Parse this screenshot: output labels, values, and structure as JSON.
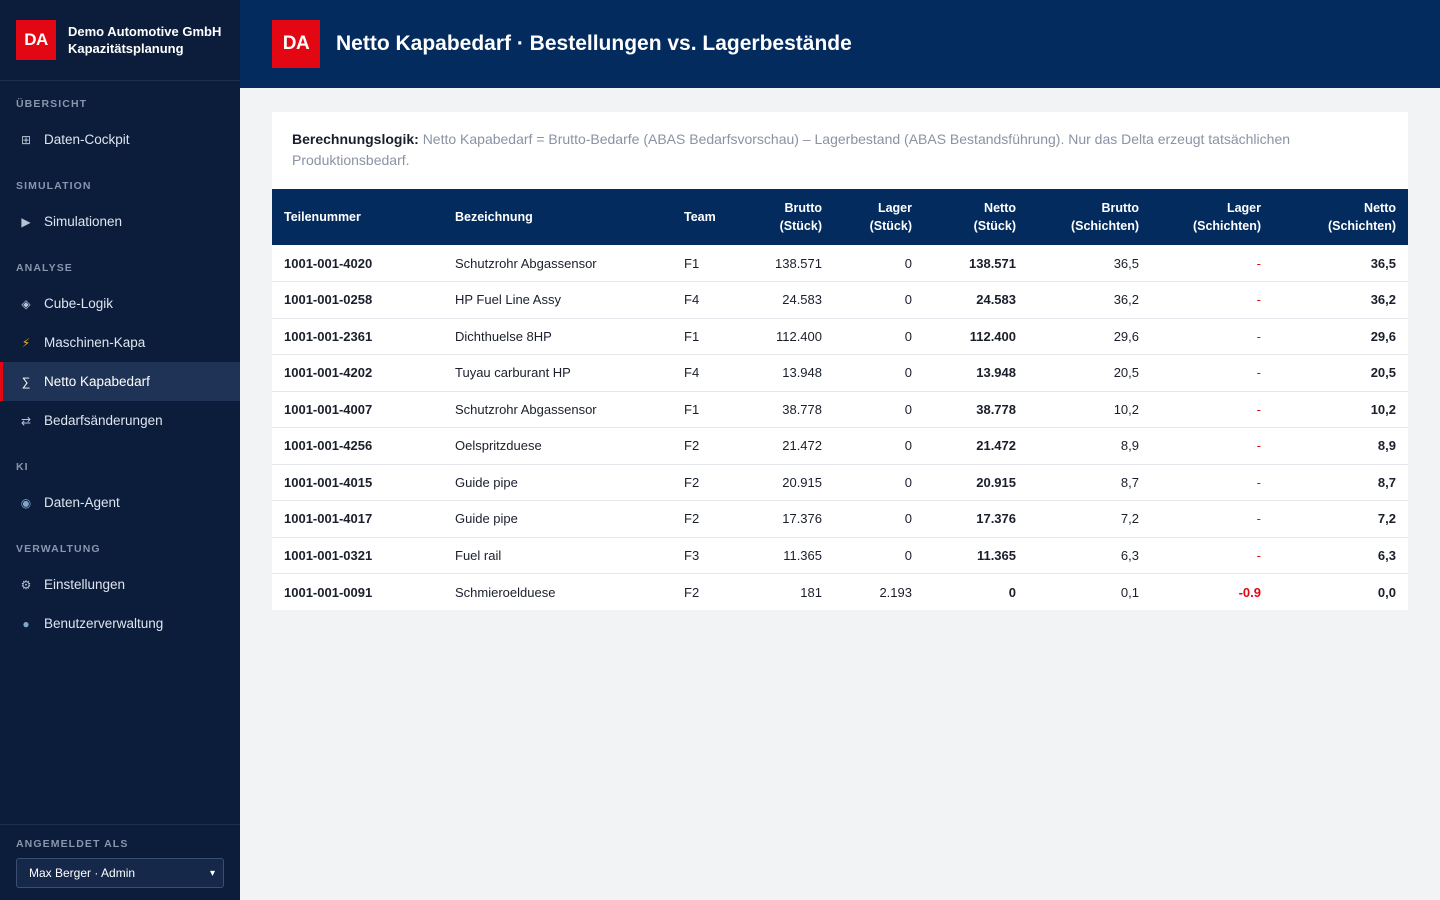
{
  "brand": {
    "logo": "DA",
    "company": "Demo Automotive GmbH",
    "product": "Kapazitätsplanung"
  },
  "nav": {
    "sections": [
      {
        "title": "ÜBERSICHT",
        "items": [
          {
            "label": "Daten-Cockpit",
            "icon": "grid-icon",
            "glyph": "⊞"
          }
        ]
      },
      {
        "title": "SIMULATION",
        "items": [
          {
            "label": "Simulationen",
            "icon": "play-icon",
            "glyph": "▶"
          }
        ]
      },
      {
        "title": "ANALYSE",
        "items": [
          {
            "label": "Cube-Logik",
            "icon": "cube-icon",
            "glyph": "◈"
          },
          {
            "label": "Maschinen-Kapa",
            "icon": "lightning-icon",
            "glyph": "⚡"
          },
          {
            "label": "Netto Kapabedarf",
            "icon": "sigma-icon",
            "glyph": "∑",
            "active": true
          },
          {
            "label": "Bedarfsänderungen",
            "icon": "swap-icon",
            "glyph": "⇄"
          }
        ]
      },
      {
        "title": "KI",
        "items": [
          {
            "label": "Daten-Agent",
            "icon": "robot-icon",
            "glyph": "◉"
          }
        ]
      },
      {
        "title": "VERWALTUNG",
        "items": [
          {
            "label": "Einstellungen",
            "icon": "gear-icon",
            "glyph": "⚙"
          },
          {
            "label": "Benutzerverwaltung",
            "icon": "user-icon",
            "glyph": "●"
          }
        ]
      }
    ]
  },
  "footer": {
    "label": "ANGEMELDET ALS",
    "user": "Max Berger · Admin"
  },
  "header": {
    "logo": "DA",
    "title": "Netto Kapabedarf · Bestellungen vs. Lagerbestände"
  },
  "logic": {
    "label": "Berechnungslogik:",
    "text": "Netto Kapabedarf = Brutto-Bedarfe (ABAS Bedarfsvorschau) – Lagerbestand (ABAS Bestandsführung). Nur das Delta erzeugt tatsächlichen Produktionsbedarf."
  },
  "table": {
    "headers": [
      {
        "l1": "Teilenummer",
        "l2": ""
      },
      {
        "l1": "Bezeichnung",
        "l2": ""
      },
      {
        "l1": "Team",
        "l2": ""
      },
      {
        "l1": "Brutto",
        "l2": "(Stück)"
      },
      {
        "l1": "Lager",
        "l2": "(Stück)"
      },
      {
        "l1": "Netto",
        "l2": "(Stück)"
      },
      {
        "l1": "Brutto",
        "l2": "(Schichten)"
      },
      {
        "l1": "Lager",
        "l2": "(Schichten)"
      },
      {
        "l1": "Netto",
        "l2": "(Schichten)"
      }
    ],
    "rows": [
      {
        "part": "1001-001-4020",
        "name": "Schutzrohr Abgassensor",
        "team": "F1",
        "brutto": "138.571",
        "lager": "0",
        "netto": "138.571",
        "brutto_s": "36,5",
        "lager_s": "-",
        "netto_s": "36,5"
      },
      {
        "part": "1001-001-0258",
        "name": "HP Fuel Line Assy",
        "team": "F4",
        "brutto": "24.583",
        "lager": "0",
        "netto": "24.583",
        "brutto_s": "36,2",
        "lager_s": "-",
        "netto_s": "36,2"
      },
      {
        "part": "1001-001-2361",
        "name": "Dichthuelse 8HP",
        "team": "F1",
        "brutto": "112.400",
        "lager": "0",
        "netto": "112.400",
        "brutto_s": "29,6",
        "lager_s": "-",
        "netto_s": "29,6"
      },
      {
        "part": "1001-001-4202",
        "name": "Tuyau carburant HP",
        "team": "F4",
        "brutto": "13.948",
        "lager": "0",
        "netto": "13.948",
        "brutto_s": "20,5",
        "lager_s": "-",
        "netto_s": "20,5"
      },
      {
        "part": "1001-001-4007",
        "name": "Schutzrohr Abgassensor",
        "team": "F1",
        "brutto": "38.778",
        "lager": "0",
        "netto": "38.778",
        "brutto_s": "10,2",
        "lager_s": "-",
        "netto_s": "10,2"
      },
      {
        "part": "1001-001-4256",
        "name": "Oelspritzduese",
        "team": "F2",
        "brutto": "21.472",
        "lager": "0",
        "netto": "21.472",
        "brutto_s": "8,9",
        "lager_s": "-",
        "netto_s": "8,9"
      },
      {
        "part": "1001-001-4015",
        "name": "Guide pipe",
        "team": "F2",
        "brutto": "20.915",
        "lager": "0",
        "netto": "20.915",
        "brutto_s": "8,7",
        "lager_s": "-",
        "netto_s": "8,7"
      },
      {
        "part": "1001-001-4017",
        "name": "Guide pipe",
        "team": "F2",
        "brutto": "17.376",
        "lager": "0",
        "netto": "17.376",
        "brutto_s": "7,2",
        "lager_s": "-",
        "netto_s": "7,2"
      },
      {
        "part": "1001-001-0321",
        "name": "Fuel rail",
        "team": "F3",
        "brutto": "11.365",
        "lager": "0",
        "netto": "11.365",
        "brutto_s": "6,3",
        "lager_s": "-",
        "netto_s": "6,3"
      },
      {
        "part": "1001-001-0091",
        "name": "Schmieroelduese",
        "team": "F2",
        "brutto": "181",
        "lager": "2.193",
        "netto": "0",
        "brutto_s": "0,1",
        "lager_s": "-0.9",
        "netto_s": "0,0"
      }
    ]
  },
  "colors": {
    "sidebar": "#0b1d3a",
    "header": "#032b5e",
    "accent": "#e30613"
  }
}
